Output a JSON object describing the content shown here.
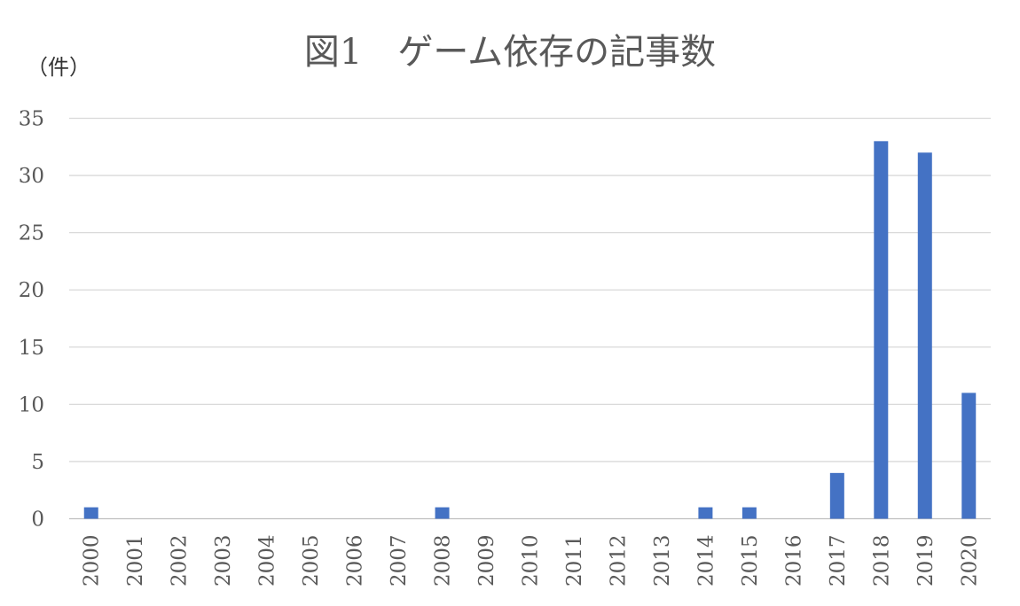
{
  "chart_data": {
    "type": "bar",
    "title": "図1　ゲーム依存の記事数",
    "y_unit_label": "（件）",
    "xlabel": "",
    "ylabel": "",
    "categories": [
      "2000",
      "2001",
      "2002",
      "2003",
      "2004",
      "2005",
      "2006",
      "2007",
      "2008",
      "2009",
      "2010",
      "2011",
      "2012",
      "2013",
      "2014",
      "2015",
      "2016",
      "2017",
      "2018",
      "2019",
      "2020"
    ],
    "values": [
      1,
      0,
      0,
      0,
      0,
      0,
      0,
      0,
      1,
      0,
      0,
      0,
      0,
      0,
      1,
      1,
      0,
      4,
      33,
      32,
      11
    ],
    "ylim": [
      0,
      35
    ],
    "yticks": [
      "0",
      "5",
      "10",
      "15",
      "20",
      "25",
      "30",
      "35"
    ],
    "grid": true,
    "legend": "none",
    "bar_color": "#4472C4"
  }
}
